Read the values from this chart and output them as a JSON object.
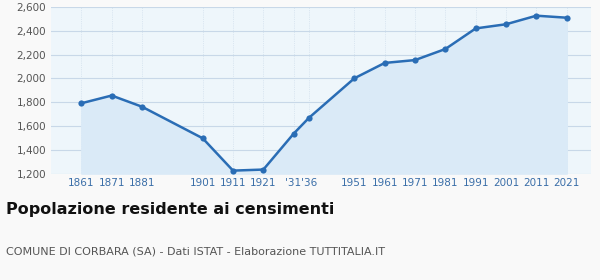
{
  "years": [
    1861,
    1871,
    1881,
    1901,
    1911,
    1921,
    1931,
    1936,
    1951,
    1961,
    1971,
    1981,
    1991,
    2001,
    2011,
    2021
  ],
  "population": [
    1791,
    1856,
    1762,
    1497,
    1225,
    1234,
    1536,
    1668,
    2001,
    2130,
    2154,
    2247,
    2420,
    2455,
    2527,
    2510
  ],
  "ylim": [
    1200,
    2600
  ],
  "yticks": [
    1200,
    1400,
    1600,
    1800,
    2000,
    2200,
    2400,
    2600
  ],
  "xlim_left": 1851,
  "xlim_right": 2029,
  "line_color": "#2a6db5",
  "fill_color": "#daeaf7",
  "marker_color": "#2a6db5",
  "fig_bg_color": "#f9f9f9",
  "plot_bg_color": "#eef6fb",
  "grid_color_h": "#c8d8e8",
  "grid_color_v": "#c8d8e8",
  "title": "Popolazione residente ai censimenti",
  "subtitle": "COMUNE DI CORBARA (SA) - Dati ISTAT - Elaborazione TUTTITALIA.IT",
  "title_fontsize": 11.5,
  "subtitle_fontsize": 8,
  "x_tick_positions": [
    1861,
    1871,
    1881,
    1901,
    1911,
    1921,
    1933.5,
    1951,
    1961,
    1971,
    1981,
    1991,
    2001,
    2011,
    2021
  ],
  "x_tick_labels": [
    "1861",
    "1871",
    "1881",
    "1901",
    "1911",
    "1921",
    "'31'36",
    "1951",
    "1961",
    "1971",
    "1981",
    "1991",
    "2001",
    "2011",
    "2021"
  ],
  "x_grid_positions": [
    1861,
    1871,
    1881,
    1901,
    1911,
    1921,
    1931,
    1936,
    1951,
    1961,
    1971,
    1981,
    1991,
    2001,
    2011,
    2021
  ]
}
